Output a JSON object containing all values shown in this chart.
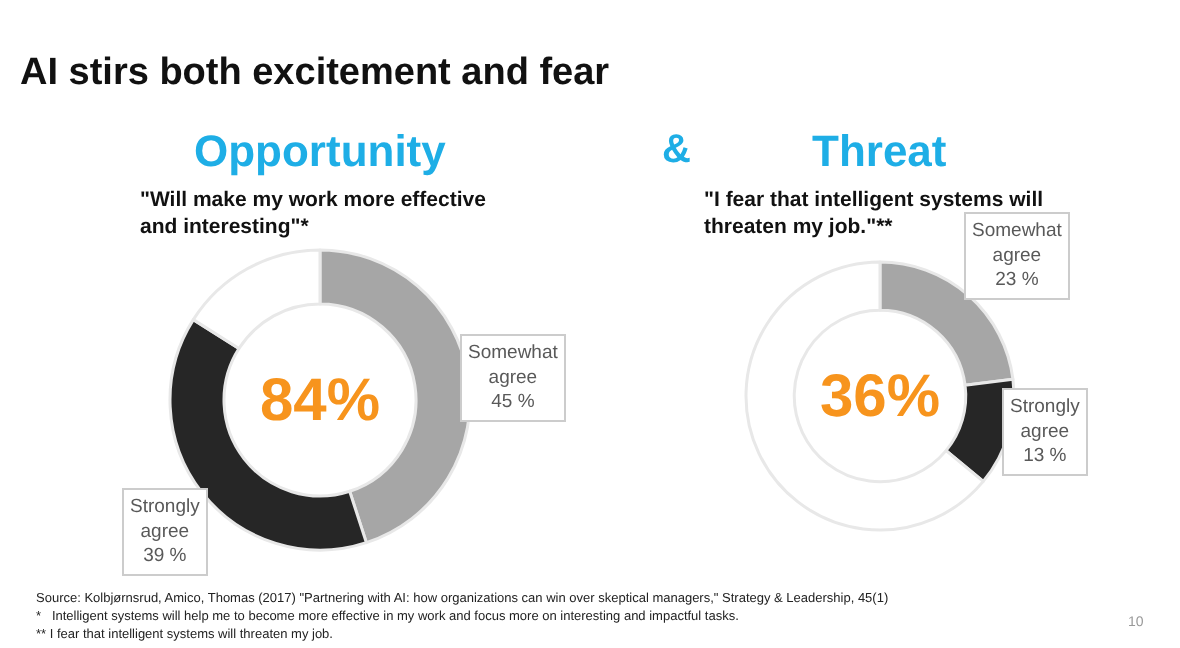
{
  "chart_data": [
    {
      "type": "other",
      "title": "AI stirs both excitement and fear",
      "annotations": [
        "&",
        "Source: Kolbjørnsrud, Amico, Thomas (2017) \"Partnering with AI: how organizations can win over skeptical managers,\" Strategy & Leadership, 45(1)",
        "*   Intelligent systems will help me to become more effective in my work and focus more on interesting and impactful tasks.",
        "** I fear that intelligent systems will threaten my job.",
        "10"
      ]
    },
    {
      "type": "donut",
      "title": "Opportunity",
      "subtitle": "\"Will make my work more effective\nand interesting\"*",
      "categories": [
        "Somewhat agree",
        "Strongly agree",
        null
      ],
      "values": [
        45,
        39,
        16
      ],
      "colors": [
        "#a6a6a6",
        "#262626",
        "#ffffff"
      ],
      "value_labels": [
        "45 %",
        "39 %",
        null
      ],
      "annotations": [
        "84%"
      ]
    },
    {
      "type": "donut",
      "title": "Threat",
      "subtitle": "\"I fear that intelligent systems will\nthreaten my job.\"**",
      "categories": [
        "Somewhat agree",
        "Strongly agree",
        null
      ],
      "values": [
        23,
        13,
        64
      ],
      "colors": [
        "#a6a6a6",
        "#262626",
        "#ffffff"
      ],
      "value_labels": [
        "23 %",
        "13 %",
        null
      ],
      "annotations": [
        "36%"
      ]
    }
  ]
}
